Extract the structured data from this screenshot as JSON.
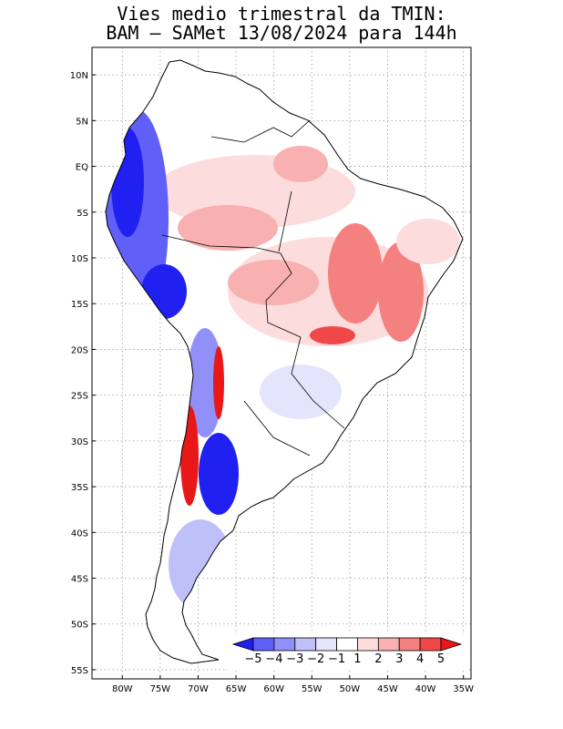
{
  "title": {
    "line1": "Vies medio trimestral da TMIN:",
    "line2": "BAM – SAMet 13/08/2024  para 144h"
  },
  "map": {
    "lon_range": [
      -84,
      -34
    ],
    "lat_range": [
      -56,
      13
    ],
    "grid": "dotted",
    "lon_ticks": [
      {
        "v": -80,
        "label": "80W"
      },
      {
        "v": -75,
        "label": "75W"
      },
      {
        "v": -70,
        "label": "70W"
      },
      {
        "v": -65,
        "label": "65W"
      },
      {
        "v": -60,
        "label": "60W"
      },
      {
        "v": -55,
        "label": "55W"
      },
      {
        "v": -50,
        "label": "50W"
      },
      {
        "v": -45,
        "label": "45W"
      },
      {
        "v": -40,
        "label": "40W"
      },
      {
        "v": -35,
        "label": "35W"
      }
    ],
    "lat_ticks": [
      {
        "v": 10,
        "label": "10N"
      },
      {
        "v": 5,
        "label": "5N"
      },
      {
        "v": 0,
        "label": "EQ"
      },
      {
        "v": -5,
        "label": "5S"
      },
      {
        "v": -10,
        "label": "10S"
      },
      {
        "v": -15,
        "label": "15S"
      },
      {
        "v": -20,
        "label": "20S"
      },
      {
        "v": -25,
        "label": "25S"
      },
      {
        "v": -30,
        "label": "30S"
      },
      {
        "v": -35,
        "label": "35S"
      },
      {
        "v": -40,
        "label": "40S"
      },
      {
        "v": -45,
        "label": "45S"
      },
      {
        "v": -50,
        "label": "50S"
      },
      {
        "v": -55,
        "label": "55S"
      }
    ]
  },
  "colorbar": {
    "colors": [
      "#2020f0",
      "#6060f8",
      "#9090f8",
      "#c0c0f8",
      "#e4e4fc",
      "#ffffff",
      "#fcdcdc",
      "#f8b0b0",
      "#f48080",
      "#f04848",
      "#e81818"
    ],
    "labels": [
      "−5",
      "−4",
      "−3",
      "−2",
      "−1",
      "1",
      "2",
      "3",
      "4",
      "5"
    ]
  }
}
